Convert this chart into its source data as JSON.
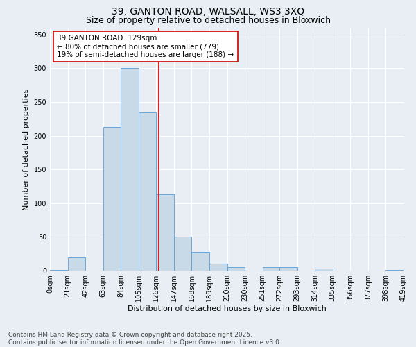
{
  "title_line1": "39, GANTON ROAD, WALSALL, WS3 3XQ",
  "title_line2": "Size of property relative to detached houses in Bloxwich",
  "xlabel": "Distribution of detached houses by size in Bloxwich",
  "ylabel": "Number of detached properties",
  "footer_line1": "Contains HM Land Registry data © Crown copyright and database right 2025.",
  "footer_line2": "Contains public sector information licensed under the Open Government Licence v3.0.",
  "annotation_line1": "39 GANTON ROAD: 129sqm",
  "annotation_line2": "← 80% of detached houses are smaller (779)",
  "annotation_line3": "19% of semi-detached houses are larger (188) →",
  "bar_left_edges": [
    0,
    21,
    42,
    63,
    84,
    105,
    126,
    147,
    168,
    189,
    210,
    231,
    252,
    272,
    293,
    314,
    335,
    356,
    377,
    398
  ],
  "bar_heights": [
    1,
    20,
    0,
    213,
    300,
    235,
    113,
    50,
    28,
    10,
    5,
    0,
    5,
    5,
    0,
    3,
    0,
    0,
    0,
    1
  ],
  "bin_width": 21,
  "bar_color": "#c8d9e8",
  "bar_edgecolor": "#5b9bd5",
  "vline_x": 129,
  "vline_color": "#cc0000",
  "ylim": [
    0,
    360
  ],
  "yticks": [
    0,
    50,
    100,
    150,
    200,
    250,
    300,
    350
  ],
  "xtick_labels": [
    "0sqm",
    "21sqm",
    "42sqm",
    "63sqm",
    "84sqm",
    "105sqm",
    "126sqm",
    "147sqm",
    "168sqm",
    "189sqm",
    "210sqm",
    "230sqm",
    "251sqm",
    "272sqm",
    "293sqm",
    "314sqm",
    "335sqm",
    "356sqm",
    "377sqm",
    "398sqm",
    "419sqm"
  ],
  "background_color": "#e8eef4",
  "plot_background_color": "#e8eef4",
  "annotation_box_color": "#ffffff",
  "annotation_box_edgecolor": "#cc0000",
  "title_fontsize": 10,
  "subtitle_fontsize": 9,
  "axis_label_fontsize": 8,
  "tick_fontsize": 7,
  "annotation_fontsize": 7.5,
  "footer_fontsize": 6.5
}
